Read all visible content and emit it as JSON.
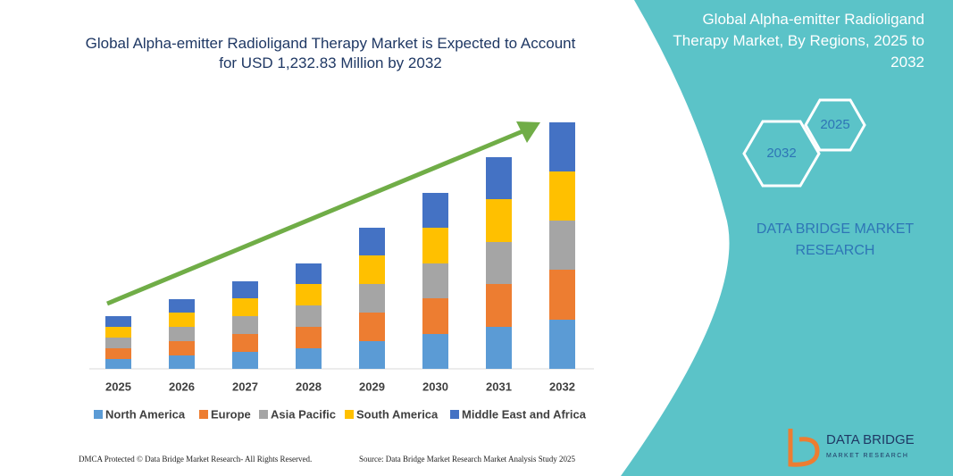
{
  "chart_data": {
    "type": "stacked-bar",
    "title": "Global Alpha-emitter Radioligand Therapy Market is Expected to Account for USD 1,232.83 Million by 2032",
    "categories": [
      "2025",
      "2026",
      "2027",
      "2028",
      "2029",
      "2030",
      "2031",
      "2032"
    ],
    "series": [
      {
        "name": "North America",
        "color": "#5b9bd5",
        "values": [
          11,
          15,
          19,
          23,
          31,
          39,
          47,
          55
        ]
      },
      {
        "name": "Europe",
        "color": "#ed7d31",
        "values": [
          12,
          16,
          20,
          24,
          32,
          40,
          48,
          56
        ]
      },
      {
        "name": "Asia Pacific",
        "color": "#a5a5a5",
        "values": [
          12,
          16,
          20,
          24,
          32,
          39,
          47,
          55
        ]
      },
      {
        "name": "South America",
        "color": "#ffc000",
        "values": [
          12,
          16,
          20,
          24,
          32,
          40,
          48,
          55
        ]
      },
      {
        "name": "Middle East and Africa",
        "color": "#4472c4",
        "values": [
          12,
          15,
          19,
          23,
          31,
          39,
          47,
          55
        ]
      }
    ],
    "ylim": [
      0,
      276
    ]
  },
  "side_panel": {
    "title": "Global Alpha-emitter Radioligand Therapy Market, By Regions, 2025 to 2032",
    "hex_labels": [
      "2025",
      "2032"
    ],
    "brand": "DATA BRIDGE MARKET RESEARCH"
  },
  "logo": {
    "name": "DATA BRIDGE",
    "tagline": "MARKET RESEARCH"
  },
  "footer": {
    "left": "DMCA Protected © Data Bridge Market Research- All Rights Reserved.",
    "right": "Source: Data Bridge Market Research Market Analysis Study 2025"
  }
}
